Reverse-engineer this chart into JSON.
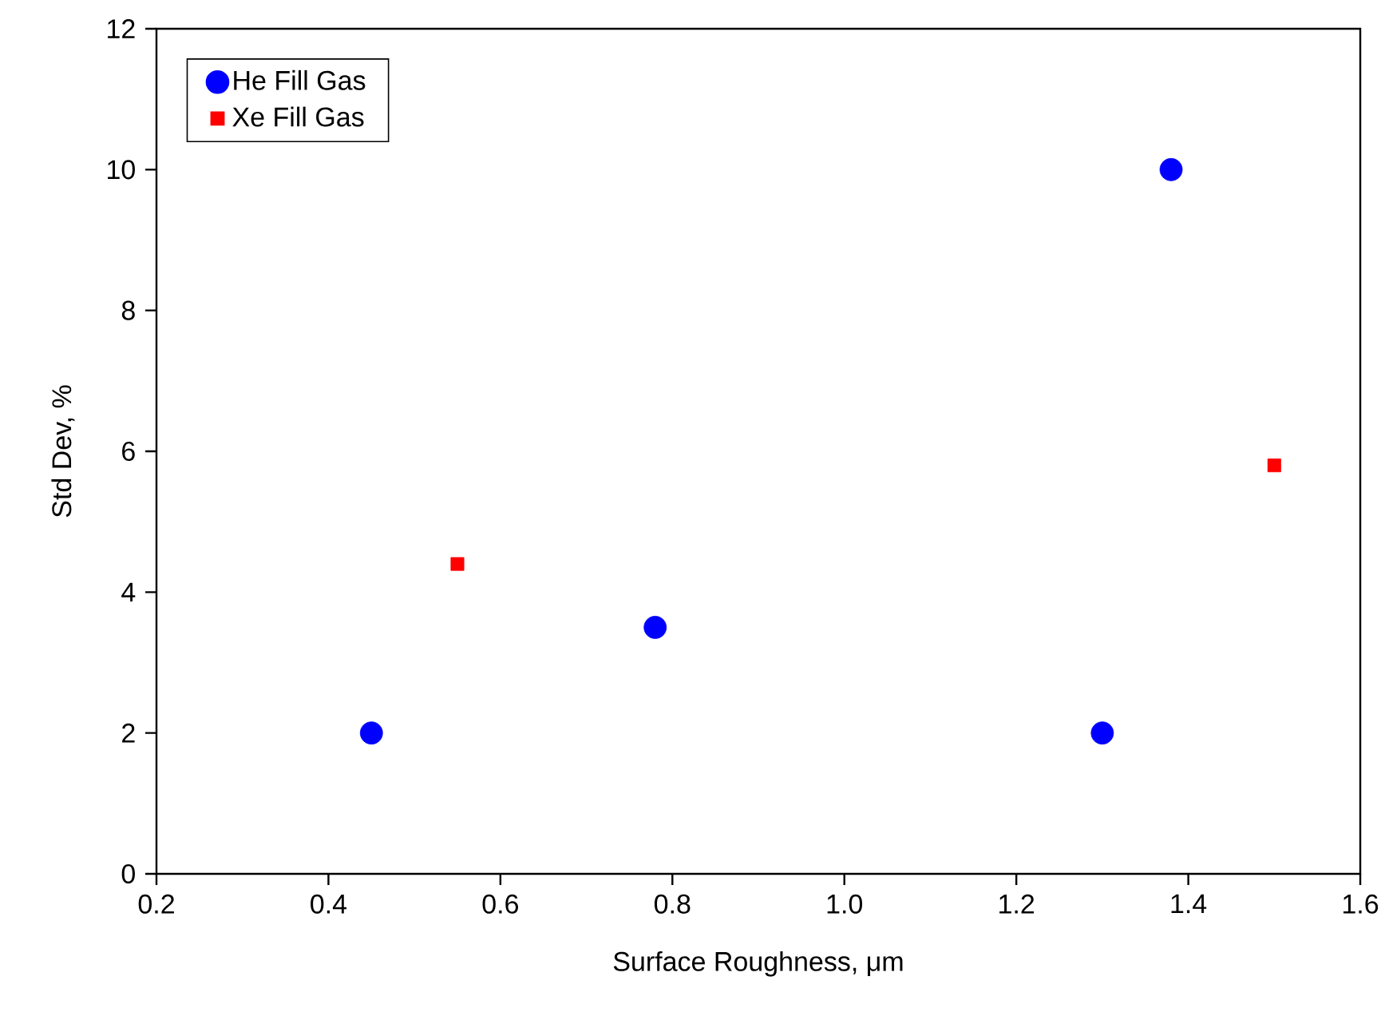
{
  "chart_data": {
    "type": "scatter",
    "xlabel": "Surface Roughness, μm",
    "ylabel": "Std Dev, %",
    "xlim": [
      0.2,
      1.6
    ],
    "xticks": [
      {
        "value": 0.2,
        "label": "0.2"
      },
      {
        "value": 0.4,
        "label": "0.4"
      },
      {
        "value": 0.6,
        "label": "0.6"
      },
      {
        "value": 0.8,
        "label": "0.8"
      },
      {
        "value": 1.0,
        "label": "1.0"
      },
      {
        "value": 1.2,
        "label": "1.2"
      },
      {
        "value": 1.4,
        "label": "1.4"
      },
      {
        "value": 1.6,
        "label": "1.6"
      }
    ],
    "ylim": [
      0,
      12
    ],
    "yticks": [
      0,
      2,
      4,
      6,
      8,
      10,
      12
    ],
    "legend": "top left",
    "grid": false,
    "series": [
      {
        "name": "He Fill Gas",
        "color": "#0000ff",
        "marker": "circle",
        "x": [
          0.45,
          0.78,
          1.3,
          1.38
        ],
        "values": [
          2,
          3.5,
          2,
          10
        ]
      },
      {
        "name": "Xe Fill Gas",
        "color": "#ff0000",
        "marker": "square",
        "x": [
          0.55,
          1.5
        ],
        "values": [
          4.4,
          5.8
        ]
      }
    ]
  }
}
